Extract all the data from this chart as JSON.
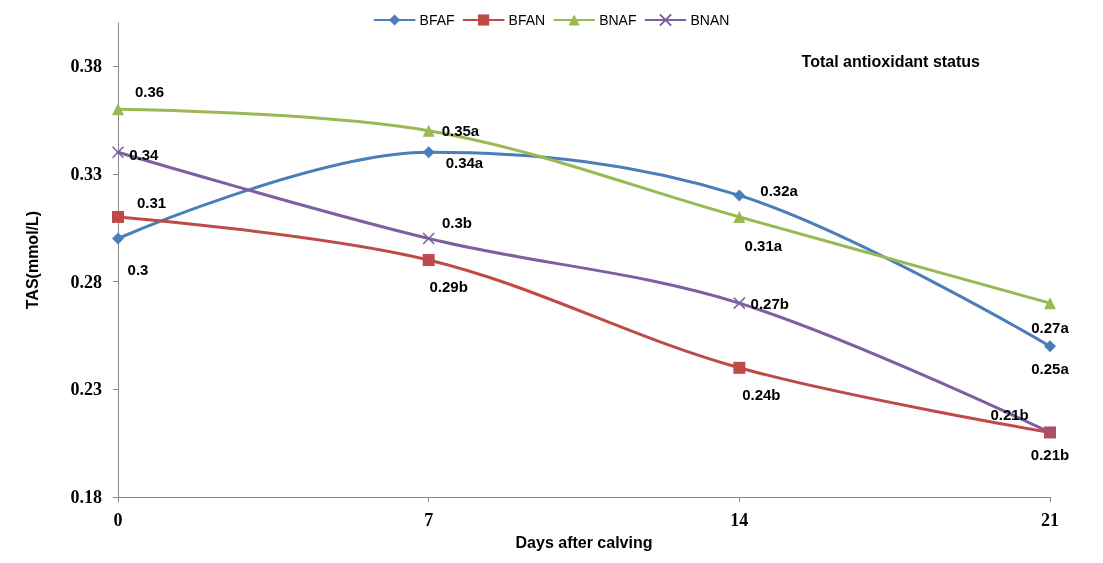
{
  "chart_data": {
    "type": "line",
    "title": "Total antioxidant status",
    "xlabel": "Days after calving",
    "ylabel": "TAS(mmol/L)",
    "x": [
      0,
      7,
      14,
      21
    ],
    "xlim": [
      0,
      21
    ],
    "xticks": [
      0,
      7,
      14,
      21
    ],
    "ylim": [
      0.18,
      0.4
    ],
    "yticks": [
      0.18,
      0.23,
      0.28,
      0.33,
      0.38
    ],
    "grid": false,
    "legend": "top",
    "line_style": "solid",
    "series": [
      {
        "name": "BFAF",
        "color": "#4a7ebb",
        "marker": "diamond",
        "values": [
          0.3,
          0.34,
          0.32,
          0.25
        ],
        "value_labels": [
          "0.3",
          "0.34a",
          "0.32a",
          "0.25a"
        ]
      },
      {
        "name": "BFAN",
        "color": "#be4b48",
        "marker": "square",
        "values": [
          0.31,
          0.29,
          0.24,
          0.21
        ],
        "value_labels": [
          "0.31",
          "0.29b",
          "0.24b",
          "0.21b"
        ]
      },
      {
        "name": "BNAF",
        "color": "#98b954",
        "marker": "triangle",
        "values": [
          0.36,
          0.35,
          0.31,
          0.27
        ],
        "value_labels": [
          "0.36",
          "0.35a",
          "0.31a",
          "0.27a"
        ]
      },
      {
        "name": "BNAN",
        "color": "#7d60a0",
        "marker": "cross",
        "values": [
          0.34,
          0.3,
          0.27,
          0.21
        ],
        "value_labels": [
          "0.34",
          "0.3b",
          "0.27b",
          "0.21b"
        ]
      }
    ]
  }
}
